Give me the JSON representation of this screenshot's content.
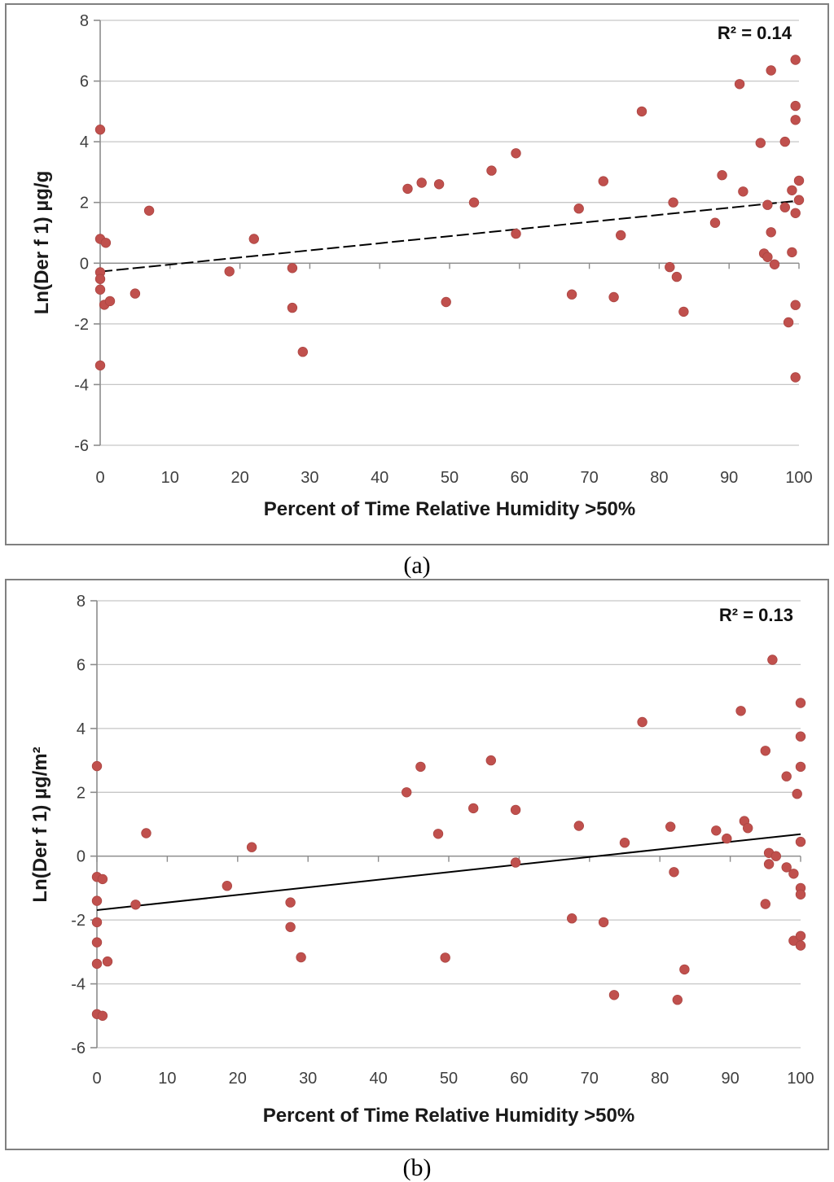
{
  "captions": {
    "a": "(a)",
    "b": "(b)"
  },
  "colors": {
    "marker": "#c0504d",
    "marker_edge": "#aa4542",
    "trend": "#000000",
    "grid": "#c6c6c6",
    "axis": "#8c8c8c",
    "frame": "#808080",
    "tick_text": "#3f3f3f"
  },
  "chart_data": [
    {
      "type": "scatter",
      "panel": "a",
      "r2_label": "R² = 0.14",
      "xlabel": "Percent of Time Relative Humidity >50%",
      "ylabel": "Ln(Der f 1)  µg/g",
      "xlim": [
        0,
        100
      ],
      "ylim": [
        -6,
        8
      ],
      "xticks": [
        0,
        10,
        20,
        30,
        40,
        50,
        60,
        70,
        80,
        90,
        100
      ],
      "yticks": [
        -6,
        -4,
        -2,
        0,
        2,
        4,
        6,
        8
      ],
      "grid": "horizontal",
      "legend": "none",
      "trendline": {
        "x1": 0,
        "y1": -0.28,
        "x2": 100,
        "y2": 2.06,
        "style": "dashed"
      },
      "points": [
        [
          0,
          4.4
        ],
        [
          0,
          0.8
        ],
        [
          0.8,
          0.67
        ],
        [
          0,
          -0.3
        ],
        [
          0,
          -0.52
        ],
        [
          0,
          -0.87
        ],
        [
          0.6,
          -1.37
        ],
        [
          1.4,
          -1.25
        ],
        [
          0,
          -3.37
        ],
        [
          5,
          -1.0
        ],
        [
          7,
          1.73
        ],
        [
          18.5,
          -0.27
        ],
        [
          22,
          0.8
        ],
        [
          27.5,
          -0.16
        ],
        [
          27.5,
          -1.47
        ],
        [
          29,
          -2.92
        ],
        [
          44,
          2.45
        ],
        [
          46,
          2.65
        ],
        [
          48.5,
          2.6
        ],
        [
          49.5,
          -1.28
        ],
        [
          53.5,
          2.0
        ],
        [
          56,
          3.05
        ],
        [
          59.5,
          3.62
        ],
        [
          59.5,
          0.97
        ],
        [
          67.5,
          -1.03
        ],
        [
          68.5,
          1.8
        ],
        [
          72,
          2.7
        ],
        [
          73.5,
          -1.12
        ],
        [
          74.5,
          0.92
        ],
        [
          77.5,
          5.0
        ],
        [
          81.5,
          -0.13
        ],
        [
          82,
          2.0
        ],
        [
          82.5,
          -0.45
        ],
        [
          83.5,
          -1.6
        ],
        [
          88,
          1.33
        ],
        [
          89,
          2.9
        ],
        [
          91.5,
          5.9
        ],
        [
          92,
          2.36
        ],
        [
          94.5,
          3.96
        ],
        [
          95,
          0.32
        ],
        [
          95.5,
          0.2
        ],
        [
          95.5,
          1.92
        ],
        [
          96,
          6.35
        ],
        [
          96,
          1.02
        ],
        [
          96.5,
          -0.04
        ],
        [
          98,
          4.0
        ],
        [
          98,
          1.84
        ],
        [
          98.5,
          -1.95
        ],
        [
          99,
          2.4
        ],
        [
          99,
          0.36
        ],
        [
          99.5,
          6.7
        ],
        [
          99.5,
          5.18
        ],
        [
          99.5,
          4.72
        ],
        [
          99.5,
          1.65
        ],
        [
          99.5,
          -1.38
        ],
        [
          99.5,
          -3.76
        ],
        [
          100,
          2.72
        ],
        [
          100,
          2.08
        ]
      ]
    },
    {
      "type": "scatter",
      "panel": "b",
      "r2_label": "R² = 0.13",
      "xlabel": "Percent of Time Relative Humidity >50%",
      "ylabel": "Ln(Der f 1)  µg/m²",
      "xlim": [
        0,
        100
      ],
      "ylim": [
        -6,
        8
      ],
      "xticks": [
        0,
        10,
        20,
        30,
        40,
        50,
        60,
        70,
        80,
        90,
        100
      ],
      "yticks": [
        -6,
        -4,
        -2,
        0,
        2,
        4,
        6,
        8
      ],
      "grid": "horizontal",
      "legend": "none",
      "trendline": {
        "x1": 0,
        "y1": -1.69,
        "x2": 100,
        "y2": 0.69,
        "style": "solid"
      },
      "points": [
        [
          0,
          2.82
        ],
        [
          0,
          -0.65
        ],
        [
          0.8,
          -0.72
        ],
        [
          0,
          -1.4
        ],
        [
          0,
          -2.07
        ],
        [
          0,
          -2.7
        ],
        [
          0,
          -3.37
        ],
        [
          1.5,
          -3.3
        ],
        [
          0,
          -4.95
        ],
        [
          0.8,
          -5.0
        ],
        [
          5.5,
          -1.52
        ],
        [
          7,
          0.72
        ],
        [
          18.5,
          -0.93
        ],
        [
          22,
          0.28
        ],
        [
          27.5,
          -1.45
        ],
        [
          27.5,
          -2.22
        ],
        [
          29,
          -3.17
        ],
        [
          44,
          2.0
        ],
        [
          46,
          2.8
        ],
        [
          48.5,
          0.7
        ],
        [
          49.5,
          -3.18
        ],
        [
          53.5,
          1.5
        ],
        [
          56,
          3.0
        ],
        [
          59.5,
          1.45
        ],
        [
          59.5,
          -0.2
        ],
        [
          67.5,
          -1.95
        ],
        [
          68.5,
          0.95
        ],
        [
          72,
          -2.07
        ],
        [
          73.5,
          -4.35
        ],
        [
          75,
          0.42
        ],
        [
          77.5,
          4.2
        ],
        [
          81.5,
          0.92
        ],
        [
          82,
          -0.5
        ],
        [
          82.5,
          -4.5
        ],
        [
          83.5,
          -3.55
        ],
        [
          88,
          0.8
        ],
        [
          89.5,
          0.55
        ],
        [
          91.5,
          4.55
        ],
        [
          92,
          1.1
        ],
        [
          92.5,
          0.88
        ],
        [
          95,
          3.3
        ],
        [
          95,
          -1.5
        ],
        [
          95.5,
          0.1
        ],
        [
          95.5,
          -0.25
        ],
        [
          96,
          6.15
        ],
        [
          96.5,
          0.0
        ],
        [
          98,
          2.5
        ],
        [
          98,
          -0.35
        ],
        [
          99,
          -0.55
        ],
        [
          99,
          -2.65
        ],
        [
          99.5,
          1.95
        ],
        [
          100,
          4.8
        ],
        [
          100,
          3.75
        ],
        [
          100,
          2.8
        ],
        [
          100,
          0.45
        ],
        [
          100,
          -1.0
        ],
        [
          100,
          -1.2
        ],
        [
          100,
          -2.5
        ],
        [
          100,
          -2.8
        ]
      ]
    }
  ]
}
